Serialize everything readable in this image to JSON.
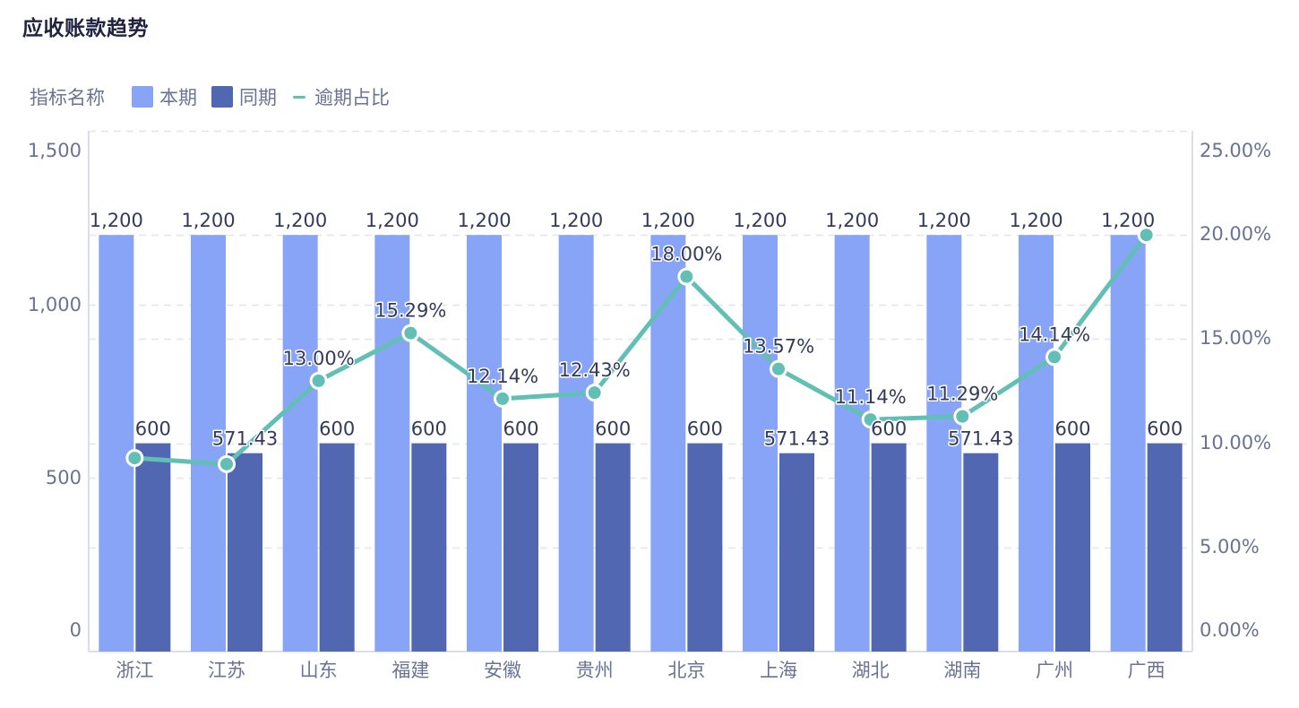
{
  "header": {
    "title": "应收账款趋势"
  },
  "legend": {
    "title": "指标名称",
    "items": [
      {
        "label": "本期",
        "type": "bar",
        "color": "#87a4f7"
      },
      {
        "label": "同期",
        "type": "bar",
        "color": "#5167b1"
      },
      {
        "label": "逾期占比",
        "type": "line",
        "color": "#62bfb5"
      }
    ]
  },
  "chart_data": {
    "type": "bar",
    "title": "应收账款趋势",
    "xlabel": "",
    "ylabel": "",
    "categories": [
      "浙江",
      "江苏",
      "山东",
      "福建",
      "安徽",
      "贵州",
      "北京",
      "上海",
      "湖北",
      "湖南",
      "广州",
      "广西"
    ],
    "series": [
      {
        "name": "本期",
        "type": "bar",
        "axis": "left",
        "color": "#87a4f7",
        "values": [
          1200,
          1200,
          1200,
          1200,
          1200,
          1200,
          1200,
          1200,
          1200,
          1200,
          1200,
          1200
        ],
        "labels": [
          "1,200",
          "1,200",
          "1,200",
          "1,200",
          "1,200",
          "1,200",
          "1,200",
          "1,200",
          "1,200",
          "1,200",
          "1,200",
          "1,200"
        ]
      },
      {
        "name": "同期",
        "type": "bar",
        "axis": "left",
        "color": "#5167b1",
        "values": [
          600,
          571.43,
          600,
          600,
          600,
          600,
          600,
          571.43,
          600,
          571.43,
          600,
          600
        ],
        "labels": [
          "600",
          "571.43",
          "600",
          "600",
          "600",
          "600",
          "600",
          "571.43",
          "600",
          "571.43",
          "600",
          "600"
        ]
      },
      {
        "name": "逾期占比",
        "type": "line",
        "axis": "right",
        "color": "#62bfb5",
        "values": [
          9.29,
          9.0,
          13.0,
          15.29,
          12.14,
          12.43,
          18.0,
          13.57,
          11.14,
          11.29,
          14.14,
          20.0
        ],
        "labels": [
          null,
          null,
          "13.00%",
          "15.29%",
          "12.14%",
          "12.43%",
          "18.00%",
          "13.57%",
          "11.14%",
          "11.29%",
          "14.14%",
          null
        ]
      }
    ],
    "y_left": {
      "min": 0,
      "max": 1500,
      "ticks": [
        0,
        500,
        1000,
        1500
      ],
      "tick_labels": [
        "0",
        "500",
        "1,000",
        "1,500"
      ]
    },
    "y_right": {
      "min": 0,
      "max": 25,
      "ticks": [
        0,
        5,
        10,
        15,
        20,
        25
      ],
      "tick_labels": [
        "0.00%",
        "5.00%",
        "10.00%",
        "15.00%",
        "20.00%",
        "25.00%"
      ]
    },
    "grid": true,
    "legend_position": "top-left"
  }
}
